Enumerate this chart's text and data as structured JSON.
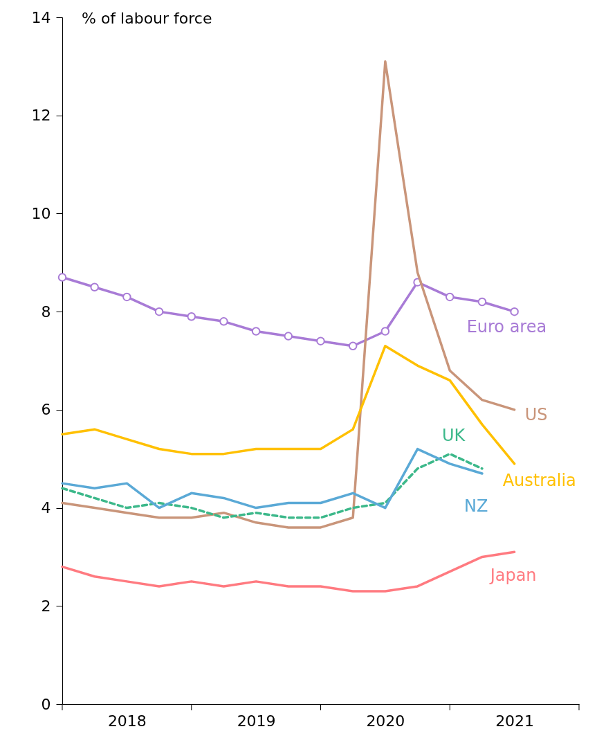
{
  "chart_data": {
    "type": "line",
    "ylabel": "% of labour force",
    "x": [
      2018.0,
      2018.25,
      2018.5,
      2018.75,
      2019.0,
      2019.25,
      2019.5,
      2019.75,
      2020.0,
      2020.25,
      2020.5,
      2020.75,
      2021.0,
      2021.25,
      2021.5
    ],
    "series": [
      {
        "name": "Euro area",
        "color": "#a87bd6",
        "marker": "circle",
        "line_style": "solid",
        "values": [
          8.7,
          8.5,
          8.3,
          8.0,
          7.9,
          7.8,
          7.6,
          7.5,
          7.4,
          7.3,
          7.6,
          8.6,
          8.3,
          8.2,
          8.0
        ]
      },
      {
        "name": "US",
        "color": "#c9957a",
        "marker": "none",
        "line_style": "solid",
        "values": [
          4.1,
          4.0,
          3.9,
          3.8,
          3.8,
          3.9,
          3.7,
          3.6,
          3.6,
          3.8,
          13.1,
          8.8,
          6.8,
          6.2,
          6.0
        ]
      },
      {
        "name": "Australia",
        "color": "#ffc000",
        "marker": "none",
        "line_style": "solid",
        "values": [
          5.5,
          5.6,
          5.4,
          5.2,
          5.1,
          5.1,
          5.2,
          5.2,
          5.2,
          5.6,
          7.3,
          6.9,
          6.6,
          5.7,
          4.9
        ]
      },
      {
        "name": "UK",
        "color": "#3cb88a",
        "marker": "none",
        "line_style": "dashed",
        "values": [
          4.4,
          4.2,
          4.0,
          4.1,
          4.0,
          3.8,
          3.9,
          3.8,
          3.8,
          4.0,
          4.1,
          4.8,
          5.1,
          4.8,
          null
        ]
      },
      {
        "name": "NZ",
        "color": "#5aa9d6",
        "marker": "none",
        "line_style": "solid",
        "values": [
          4.5,
          4.4,
          4.5,
          4.0,
          4.3,
          4.2,
          4.0,
          4.1,
          4.1,
          4.3,
          4.0,
          5.2,
          4.9,
          4.7,
          null
        ]
      },
      {
        "name": "Japan",
        "color": "#ff7a80",
        "marker": "none",
        "line_style": "solid",
        "values": [
          2.8,
          2.6,
          2.5,
          2.4,
          2.5,
          2.4,
          2.5,
          2.4,
          2.4,
          2.3,
          2.3,
          2.4,
          2.7,
          3.0,
          3.1
        ]
      }
    ],
    "xlim": [
      2018,
      2022
    ],
    "xticks": [
      {
        "value": 2018,
        "label": null
      },
      {
        "value": 2018.5,
        "label": "2018"
      },
      {
        "value": 2019,
        "label": null
      },
      {
        "value": 2019.5,
        "label": "2019"
      },
      {
        "value": 2020,
        "label": null
      },
      {
        "value": 2020.5,
        "label": "2020"
      },
      {
        "value": 2021,
        "label": null
      },
      {
        "value": 2021.5,
        "label": "2021"
      },
      {
        "value": 2022,
        "label": null
      }
    ],
    "ylim": [
      0,
      14
    ],
    "yticks": [
      0,
      2,
      4,
      6,
      8,
      10,
      12,
      14
    ],
    "grid": false
  }
}
